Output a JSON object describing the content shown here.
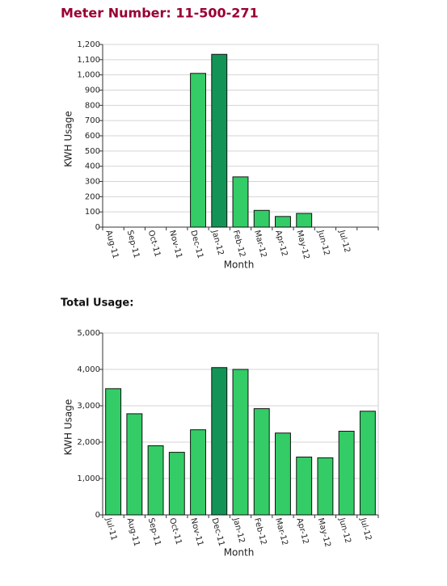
{
  "chart_data": [
    {
      "type": "bar",
      "title": "Meter Number: 11-500-271",
      "xlabel": "Month",
      "ylabel": "KWH Usage",
      "categories": [
        "Aug-11",
        "Sep-11",
        "Oct-11",
        "Nov-11",
        "Dec-11",
        "Jan-12",
        "Feb-12",
        "Mar-12",
        "Apr-12",
        "May-12",
        "Jun-12",
        "Jul-12",
        null
      ],
      "values": [
        0,
        0,
        0,
        0,
        1010,
        1135,
        330,
        110,
        70,
        90,
        0,
        0,
        null
      ],
      "colors": [
        "#33cc66",
        "#33cc66",
        "#33cc66",
        "#33cc66",
        "#33cc66",
        "#139457",
        "#33cc66",
        "#33cc66",
        "#33cc66",
        "#33cc66",
        "#33cc66",
        "#33cc66",
        "#33cc66"
      ],
      "ylim": [
        0,
        1200
      ],
      "yticks": [
        0,
        100,
        200,
        300,
        400,
        500,
        600,
        700,
        800,
        900,
        {
          "value": 1000,
          "label": "1,000"
        },
        {
          "value": 1100,
          "label": "1,100"
        },
        {
          "value": 1200,
          "label": "1,200"
        }
      ],
      "grid": true
    },
    {
      "type": "bar",
      "title": "Total Usage:",
      "xlabel": "Month",
      "ylabel": "KWH Usage",
      "categories": [
        "Jul-11",
        "Aug-11",
        "Sep-11",
        "Oct-11",
        "Nov-11",
        "Dec-11",
        "Jan-12",
        "Feb-12",
        "Mar-12",
        "Apr-12",
        "May-12",
        "Jun-12",
        "Jul-12"
      ],
      "values": [
        3470,
        2780,
        1900,
        1720,
        2340,
        4050,
        4000,
        2920,
        2250,
        1590,
        1570,
        2300,
        2850
      ],
      "colors": [
        "#33cc66",
        "#33cc66",
        "#33cc66",
        "#33cc66",
        "#33cc66",
        "#139457",
        "#33cc66",
        "#33cc66",
        "#33cc66",
        "#33cc66",
        "#33cc66",
        "#33cc66",
        "#33cc66"
      ],
      "ylim": [
        0,
        5000
      ],
      "yticks": [
        0,
        {
          "value": 1000,
          "label": "1,000"
        },
        {
          "value": 2000,
          "label": "2,000"
        },
        {
          "value": 3000,
          "label": "3,000"
        },
        {
          "value": 4000,
          "label": "4,000"
        },
        {
          "value": 5000,
          "label": "5,000"
        }
      ],
      "grid": true
    }
  ]
}
